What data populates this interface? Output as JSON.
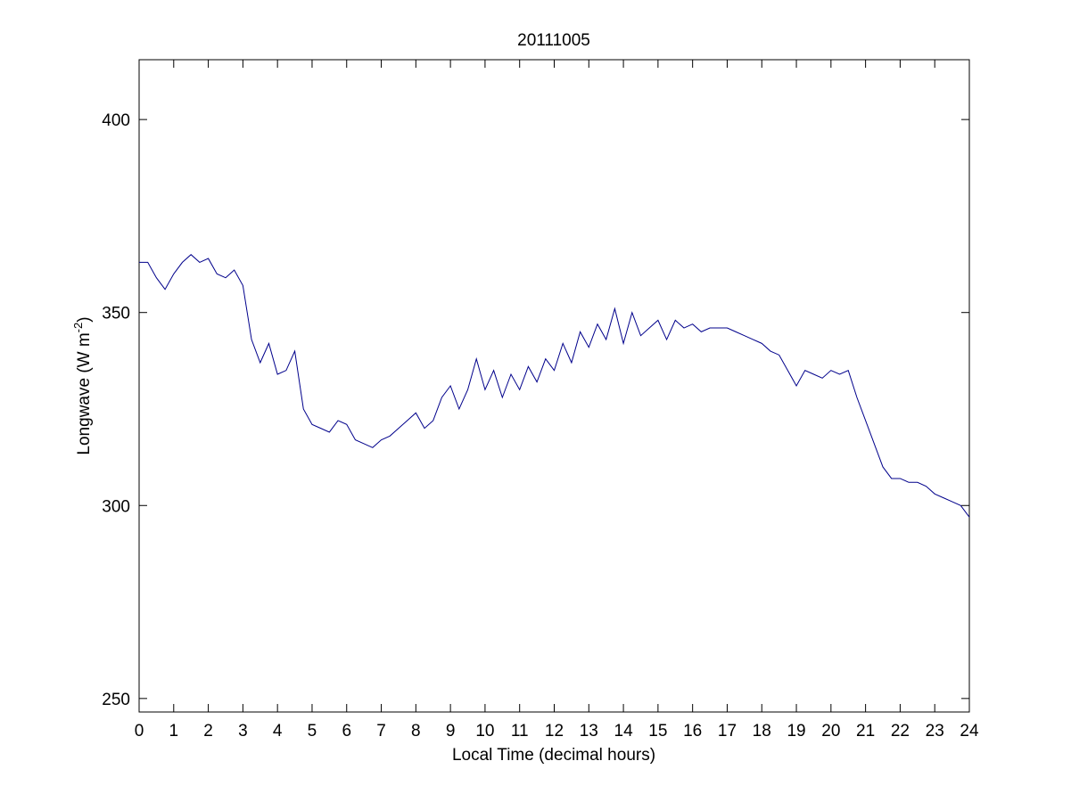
{
  "chart_data": {
    "type": "line",
    "title": "20111005",
    "xlabel": "Local Time (decimal hours)",
    "ylabel_parts": [
      "Longwave (W m",
      "-2",
      ")"
    ],
    "x": [
      0,
      0.25,
      0.5,
      0.75,
      1,
      1.25,
      1.5,
      1.75,
      2,
      2.25,
      2.5,
      2.75,
      3,
      3.25,
      3.5,
      3.75,
      4,
      4.25,
      4.5,
      4.75,
      5,
      5.25,
      5.5,
      5.75,
      6,
      6.25,
      6.5,
      6.75,
      7,
      7.25,
      7.5,
      7.75,
      8,
      8.25,
      8.5,
      8.75,
      9,
      9.25,
      9.5,
      9.75,
      10,
      10.25,
      10.5,
      10.75,
      11,
      11.25,
      11.5,
      11.75,
      12,
      12.25,
      12.5,
      12.75,
      13,
      13.25,
      13.5,
      13.75,
      14,
      14.25,
      14.5,
      14.75,
      15,
      15.25,
      15.5,
      15.75,
      16,
      16.25,
      16.5,
      16.75,
      17,
      17.25,
      17.5,
      17.75,
      18,
      18.25,
      18.5,
      18.75,
      19,
      19.25,
      19.5,
      19.75,
      20,
      20.25,
      20.5,
      20.75,
      21,
      21.25,
      21.5,
      21.75,
      22,
      22.25,
      22.5,
      22.75,
      23,
      23.25,
      23.5,
      23.75,
      24
    ],
    "series": [
      {
        "name": "Longwave",
        "color": "#00008b",
        "values": [
          363,
          363,
          359,
          356,
          360,
          363,
          365,
          363,
          364,
          360,
          359,
          361,
          357,
          343,
          337,
          342,
          334,
          335,
          340,
          325,
          321,
          320,
          319,
          322,
          321,
          317,
          316,
          315,
          317,
          318,
          320,
          322,
          324,
          320,
          322,
          328,
          331,
          325,
          330,
          338,
          330,
          335,
          328,
          334,
          330,
          336,
          332,
          338,
          335,
          342,
          337,
          345,
          341,
          347,
          343,
          351,
          342,
          350,
          344,
          346,
          348,
          343,
          348,
          346,
          347,
          345,
          346,
          346,
          346,
          345,
          344,
          343,
          342,
          340,
          339,
          335,
          331,
          335,
          334,
          333,
          335,
          334,
          335,
          328,
          322,
          316,
          310,
          307,
          307,
          306,
          306,
          305,
          303,
          302,
          301,
          300,
          297
        ]
      }
    ],
    "xlim": [
      0,
      24
    ],
    "ylim": [
      246.5,
      415.5
    ],
    "xticks": [
      0,
      1,
      2,
      3,
      4,
      5,
      6,
      7,
      8,
      9,
      10,
      11,
      12,
      13,
      14,
      15,
      16,
      17,
      18,
      19,
      20,
      21,
      22,
      23,
      24
    ],
    "yticks": [
      250,
      300,
      350,
      400
    ]
  }
}
